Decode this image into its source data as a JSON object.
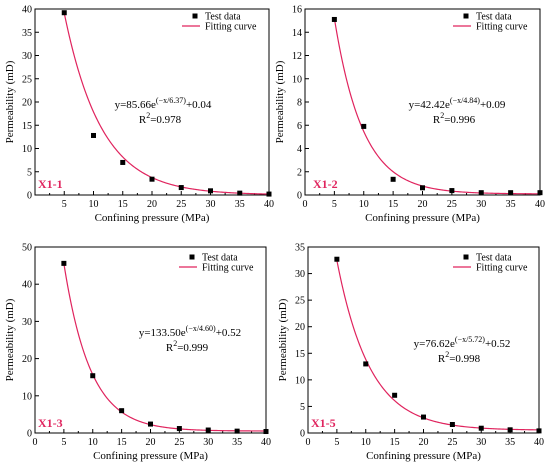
{
  "legend": {
    "points": "Test data",
    "curve": "Fitting curve"
  },
  "colors": {
    "curve": "#e0245e",
    "points": "#000000",
    "tag": "#e0245e"
  },
  "chart_data": [
    {
      "type": "scatter",
      "sample": "X1-1",
      "xlabel": "Confining pressure (MPa)",
      "ylabel": "Permeability (mD)",
      "xlim": [
        0,
        40
      ],
      "ylim": [
        0,
        40
      ],
      "xticks": [
        5,
        10,
        15,
        20,
        25,
        30,
        35,
        40
      ],
      "yticks": [
        0,
        5,
        10,
        15,
        20,
        25,
        30,
        35,
        40
      ],
      "x": [
        5,
        10,
        15,
        20,
        25,
        30,
        35,
        40
      ],
      "y": [
        39.2,
        12.8,
        7.0,
        3.4,
        1.6,
        0.9,
        0.4,
        0.2
      ],
      "fit": {
        "a": 85.66,
        "b": 6.37,
        "c": 0.04,
        "x_start": 5
      },
      "equation": {
        "prefix": "y=85.66e",
        "exp": "(−x/6.37)",
        "suffix": "+0.04",
        "r2_label": "R",
        "r2_exp": "2",
        "r2_value": "=0.978"
      }
    },
    {
      "type": "scatter",
      "sample": "X1-2",
      "xlabel": "Confining pressure (MPa)",
      "ylabel": "Permeability (mD)",
      "xlim": [
        0,
        40
      ],
      "ylim": [
        0,
        16
      ],
      "xticks": [
        0,
        5,
        10,
        15,
        20,
        25,
        30,
        35,
        40
      ],
      "yticks": [
        0,
        2,
        4,
        6,
        8,
        10,
        12,
        14,
        16
      ],
      "x": [
        5,
        10,
        15,
        20,
        25,
        30,
        35,
        40
      ],
      "y": [
        15.1,
        5.9,
        1.35,
        0.62,
        0.38,
        0.2,
        0.2,
        0.2
      ],
      "fit": {
        "a": 42.42,
        "b": 4.84,
        "c": 0.09,
        "x_start": 5
      },
      "equation": {
        "prefix": "y=42.42e",
        "exp": "(−x/4.84)",
        "suffix": "+0.09",
        "r2_label": "R",
        "r2_exp": "2",
        "r2_value": "=0.996"
      }
    },
    {
      "type": "scatter",
      "sample": "X1-3",
      "xlabel": "Confining pressure (MPa)",
      "ylabel": "Permeability (mD)",
      "xlim": [
        0,
        40
      ],
      "ylim": [
        0,
        50
      ],
      "xticks": [
        0,
        5,
        10,
        15,
        20,
        25,
        30,
        35,
        40
      ],
      "yticks": [
        0,
        10,
        20,
        30,
        40,
        50
      ],
      "x": [
        5,
        10,
        15,
        20,
        25,
        30,
        35,
        40
      ],
      "y": [
        45.6,
        15.4,
        6.0,
        2.4,
        1.2,
        0.8,
        0.5,
        0.4
      ],
      "fit": {
        "a": 133.5,
        "b": 4.6,
        "c": 0.52,
        "x_start": 5
      },
      "equation": {
        "prefix": "y=133.50e",
        "exp": "(−x/4.60)",
        "suffix": "+0.52",
        "r2_label": "R",
        "r2_exp": "2",
        "r2_value": "=0.999"
      }
    },
    {
      "type": "scatter",
      "sample": "X1-5",
      "xlabel": "Confining pressure (MPa)",
      "ylabel": "Permeability (mD)",
      "xlim": [
        0,
        40
      ],
      "ylim": [
        0,
        35
      ],
      "xticks": [
        0,
        5,
        10,
        15,
        20,
        25,
        30,
        35,
        40
      ],
      "yticks": [
        0,
        5,
        10,
        15,
        20,
        25,
        30,
        35
      ],
      "x": [
        5,
        10,
        15,
        20,
        25,
        30,
        35,
        40
      ],
      "y": [
        32.7,
        13.0,
        7.1,
        3.0,
        1.6,
        0.9,
        0.6,
        0.4
      ],
      "fit": {
        "a": 76.62,
        "b": 5.72,
        "c": 0.52,
        "x_start": 5
      },
      "equation": {
        "prefix": "y=76.62e",
        "exp": "(−x/5.72)",
        "suffix": "+0.52",
        "r2_label": "R",
        "r2_exp": "2",
        "r2_value": "=0.998"
      }
    }
  ]
}
